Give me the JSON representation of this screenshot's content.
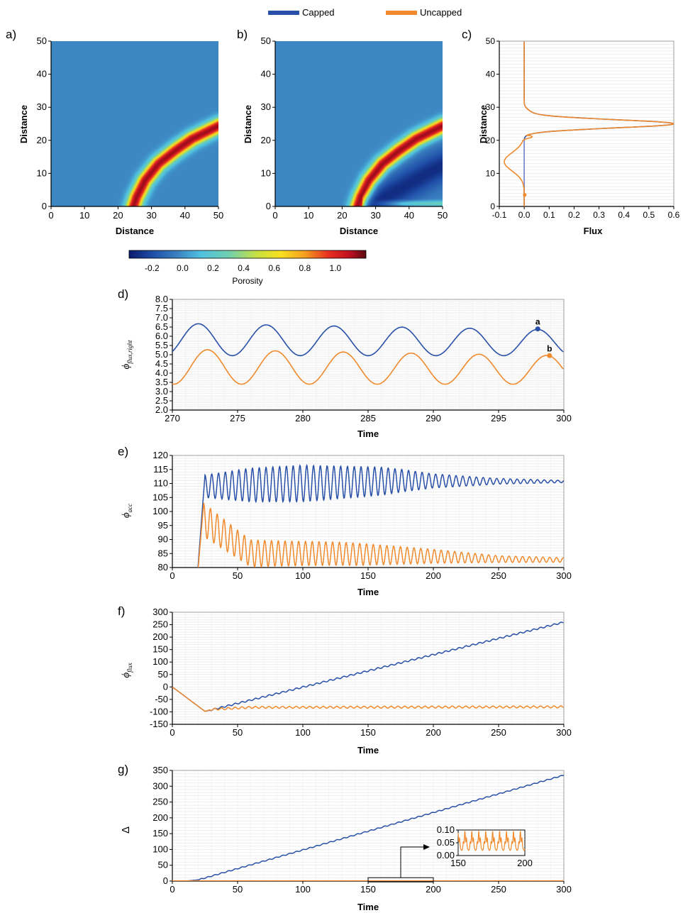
{
  "legend": {
    "items": [
      {
        "label": "Capped",
        "color": "#2850a8"
      },
      {
        "label": "Uncapped",
        "color": "#f08a2c"
      }
    ]
  },
  "colors": {
    "capped": "#2850a8",
    "uncapped": "#f08a2c",
    "field_background": "#3a7fbf"
  },
  "panels": {
    "a": {
      "label": "a)",
      "xlabel": "Distance",
      "ylabel": "Distance"
    },
    "b": {
      "label": "b)",
      "xlabel": "Distance",
      "ylabel": "Distance"
    },
    "c": {
      "label": "c)",
      "xlabel": "Flux",
      "ylabel": "Distance"
    },
    "d": {
      "label": "d)",
      "xlabel": "Time",
      "ylabel": "ϕ",
      "ylabel_sub": "flux,right"
    },
    "e": {
      "label": "e)",
      "xlabel": "Time",
      "ylabel": "ϕ",
      "ylabel_sub": "acc"
    },
    "f": {
      "label": "f)",
      "xlabel": "Time",
      "ylabel": "ϕ",
      "ylabel_sub": "flux"
    },
    "g": {
      "label": "g)",
      "xlabel": "Time",
      "ylabel": "Δ"
    }
  },
  "colorbar": {
    "label": "Porosity",
    "ticks": [
      "-0.2",
      "0.0",
      "0.2",
      "0.4",
      "0.6",
      "0.8",
      "1.0"
    ],
    "tick_values": [
      -0.2,
      0.0,
      0.2,
      0.4,
      0.6,
      0.8,
      1.0
    ],
    "range": [
      -0.35,
      1.2
    ]
  },
  "chart_data": [
    {
      "id": "a",
      "type": "heatmap",
      "xlim": [
        0,
        50
      ],
      "ylim": [
        0,
        50
      ],
      "xticks": [
        "0",
        "10",
        "20",
        "30",
        "40",
        "50"
      ],
      "yticks": [
        "0",
        "10",
        "20",
        "30",
        "40",
        "50"
      ],
      "band_center": [
        [
          24.5,
          0
        ],
        [
          25.5,
          3
        ],
        [
          28,
          8
        ],
        [
          32,
          13
        ],
        [
          37,
          17
        ],
        [
          42,
          20.5
        ],
        [
          46,
          22.5
        ],
        [
          50,
          24.5
        ]
      ],
      "band_peak": 1.1
    },
    {
      "id": "b",
      "type": "heatmap",
      "xlim": [
        0,
        50
      ],
      "ylim": [
        0,
        50
      ],
      "xticks": [
        "0",
        "10",
        "20",
        "30",
        "40",
        "50"
      ],
      "yticks": [
        "0",
        "10",
        "20",
        "30",
        "40",
        "50"
      ],
      "band_center": [
        [
          24.5,
          0
        ],
        [
          25.5,
          3
        ],
        [
          28,
          8
        ],
        [
          32,
          13
        ],
        [
          37,
          17
        ],
        [
          42,
          20.5
        ],
        [
          46,
          22.5
        ],
        [
          50,
          24.5
        ]
      ],
      "band_peak": 1.1,
      "depletion_center": [
        [
          28,
          0
        ],
        [
          33,
          3
        ],
        [
          40,
          7
        ],
        [
          47,
          11
        ],
        [
          50,
          12.5
        ]
      ],
      "depletion_min": -0.3,
      "bottom_band_peak": 0.3
    },
    {
      "id": "c",
      "type": "line",
      "xlim": [
        -0.1,
        0.6
      ],
      "ylim": [
        0,
        50
      ],
      "xticks": [
        "-0.1",
        "0.0",
        "0.1",
        "0.2",
        "0.3",
        "0.4",
        "0.5",
        "0.6"
      ],
      "yticks": [
        "0",
        "10",
        "20",
        "30",
        "40",
        "50"
      ],
      "series": [
        {
          "name": "Capped",
          "x": [
            0,
            0,
            0,
            0.01,
            0.05,
            0.2,
            0.45,
            0.6,
            0.45,
            0.2,
            0.05,
            0.01,
            0,
            0,
            0
          ],
          "y": [
            0,
            3,
            10,
            20.5,
            21.5,
            22.5,
            23.8,
            25,
            26.2,
            27.3,
            28.5,
            30,
            32,
            40,
            50
          ]
        },
        {
          "name": "Uncapped",
          "x": [
            0,
            0.002,
            0.005,
            -0.005,
            -0.02,
            -0.05,
            -0.08,
            -0.07,
            -0.05,
            -0.03,
            -0.01,
            0.01,
            0.05,
            0.2,
            0.45,
            0.6,
            0.45,
            0.2,
            0.05,
            0.01,
            0,
            0
          ],
          "y": [
            0,
            2,
            4,
            7,
            9,
            11,
            13,
            15,
            17,
            18.5,
            20,
            21,
            21.5,
            22.5,
            23.8,
            25,
            26.2,
            27.3,
            28.5,
            30,
            35,
            50
          ]
        }
      ]
    },
    {
      "id": "d",
      "type": "line",
      "xlim": [
        270,
        300
      ],
      "ylim": [
        2.0,
        8.0
      ],
      "xticks": [
        "270",
        "275",
        "280",
        "285",
        "290",
        "295",
        "300"
      ],
      "yticks": [
        "2.0",
        "2.5",
        "3.0",
        "3.5",
        "4.0",
        "4.5",
        "5.0",
        "5.5",
        "6.0",
        "6.5",
        "7.0",
        "7.5",
        "8.0"
      ],
      "series": [
        {
          "name": "Capped",
          "period": 5.2,
          "x_range": [
            270,
            300
          ],
          "peak_x": 272,
          "max_start": 6.7,
          "max_end": 6.35,
          "min": 4.95
        },
        {
          "name": "Uncapped",
          "period": 5.2,
          "x_range": [
            270,
            300
          ],
          "peak_x": 272.7,
          "max_start": 5.3,
          "max_end": 4.95,
          "min": 3.4
        }
      ],
      "annotations": [
        {
          "text": "a",
          "x": 298,
          "y": 6.4,
          "series": "Capped"
        },
        {
          "text": "b",
          "x": 298.9,
          "y": 4.95,
          "series": "Uncapped"
        }
      ]
    },
    {
      "id": "e",
      "type": "line",
      "xlim": [
        0,
        300
      ],
      "ylim": [
        80,
        120
      ],
      "xticks": [
        "0",
        "50",
        "100",
        "150",
        "200",
        "250",
        "300"
      ],
      "yticks": [
        "80",
        "85",
        "90",
        "95",
        "100",
        "105",
        "110",
        "115",
        "120"
      ],
      "series": [
        {
          "name": "Capped",
          "start_x": 18,
          "first_peak": [
            25,
            113
          ],
          "mean": [
            [
              25,
              109
            ],
            [
              100,
              110
            ],
            [
              175,
              111
            ],
            [
              230,
              110.8
            ],
            [
              300,
              110.7
            ]
          ],
          "amplitude": [
            [
              25,
              4
            ],
            [
              60,
              6
            ],
            [
              100,
              6.5
            ],
            [
              160,
              5
            ],
            [
              200,
              2.5
            ],
            [
              250,
              1
            ],
            [
              300,
              0.4
            ]
          ],
          "period": 5.2
        },
        {
          "name": "Uncapped",
          "start_x": 18,
          "first_peak": [
            24,
            103
          ],
          "mean": [
            [
              24,
              97
            ],
            [
              60,
              85
            ],
            [
              120,
              85
            ],
            [
              200,
              84
            ],
            [
              250,
              83
            ],
            [
              300,
              82.7
            ]
          ],
          "amplitude": [
            [
              24,
              6
            ],
            [
              50,
              5
            ],
            [
              80,
              4.5
            ],
            [
              140,
              4
            ],
            [
              200,
              2.5
            ],
            [
              250,
              1.2
            ],
            [
              300,
              0.8
            ]
          ],
          "period": 5.2
        }
      ]
    },
    {
      "id": "f",
      "type": "line",
      "xlim": [
        0,
        300
      ],
      "ylim": [
        -150,
        300
      ],
      "xticks": [
        "0",
        "50",
        "100",
        "150",
        "200",
        "250",
        "300"
      ],
      "yticks": [
        "-150",
        "-100",
        "-50",
        "0",
        "50",
        "100",
        "150",
        "200",
        "250",
        "300"
      ],
      "series": [
        {
          "name": "Capped",
          "points": [
            [
              0,
              0
            ],
            [
              25,
              -98
            ],
            [
              30,
              -92
            ],
            [
              300,
              260
            ]
          ],
          "amplitude": 3
        },
        {
          "name": "Uncapped",
          "points": [
            [
              0,
              0
            ],
            [
              25,
              -98
            ],
            [
              30,
              -90
            ],
            [
              60,
              -82
            ],
            [
              300,
              -80
            ]
          ],
          "amplitude": 4
        }
      ]
    },
    {
      "id": "g",
      "type": "line",
      "xlim": [
        0,
        300
      ],
      "ylim": [
        0,
        350
      ],
      "xticks": [
        "0",
        "50",
        "100",
        "150",
        "200",
        "250",
        "300"
      ],
      "yticks": [
        "0",
        "50",
        "100",
        "150",
        "200",
        "250",
        "300",
        "350"
      ],
      "series": [
        {
          "name": "Capped",
          "points": [
            [
              0,
              0
            ],
            [
              10,
              0
            ],
            [
              20,
              4
            ],
            [
              300,
              335
            ]
          ],
          "amplitude": 1.5
        },
        {
          "name": "Uncapped",
          "points": [
            [
              0,
              0
            ],
            [
              300,
              0
            ]
          ]
        }
      ],
      "inset": {
        "xlim": [
          150,
          200
        ],
        "ylim": [
          0.0,
          0.1
        ],
        "xticks": [
          "150",
          "200"
        ],
        "yticks": [
          "0.00",
          "0.05",
          "0.10"
        ],
        "series": [
          {
            "name": "Uncapped",
            "period": 5.2,
            "low": 0.02,
            "high": 0.095
          }
        ]
      }
    }
  ]
}
